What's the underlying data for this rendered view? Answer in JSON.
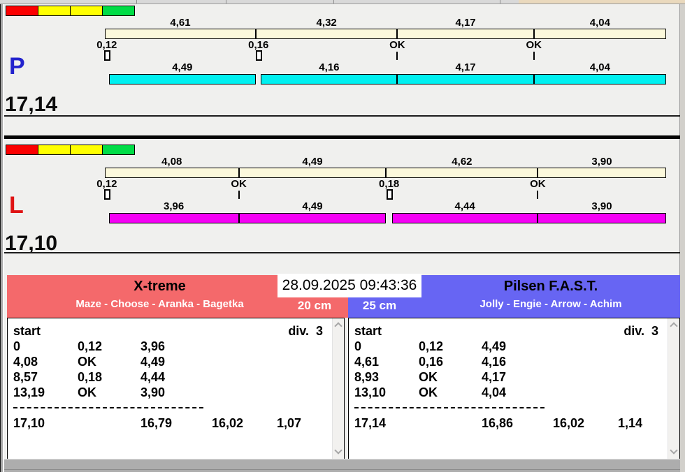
{
  "meta": {
    "datetime": "28.09.2025 09:43:36"
  },
  "lights": [
    "#fb0000",
    "#ffff00",
    "#ffff00",
    "#00dc46"
  ],
  "lanes": [
    {
      "letter": "P",
      "letter_color": "#2323cd",
      "total_label": "17,14",
      "total": 17.14,
      "bar_color": "#00f0f0",
      "segments": [
        {
          "label": "4,61",
          "t": 4.61
        },
        {
          "label": "4,32",
          "t": 4.32
        },
        {
          "label": "4,17",
          "t": 4.17
        },
        {
          "label": "4,04",
          "t": 4.04
        }
      ],
      "crossings": [
        {
          "label": "0,12",
          "gap": 0.12,
          "style": "box"
        },
        {
          "label": "0,16",
          "gap": 0.16,
          "style": "box"
        },
        {
          "label": "OK",
          "gap": 0,
          "style": "tick"
        },
        {
          "label": "OK",
          "gap": 0,
          "style": "tick"
        }
      ],
      "dog_segments": [
        {
          "label": "4,49",
          "t": 4.49
        },
        {
          "label": "4,16",
          "t": 4.16
        },
        {
          "label": "4,17",
          "t": 4.17
        },
        {
          "label": "4,04",
          "t": 4.04
        }
      ]
    },
    {
      "letter": "L",
      "letter_color": "#df1313",
      "total_label": "17,10",
      "total": 17.1,
      "bar_color": "#f500f5",
      "segments": [
        {
          "label": "4,08",
          "t": 4.08
        },
        {
          "label": "4,49",
          "t": 4.49
        },
        {
          "label": "4,62",
          "t": 4.62
        },
        {
          "label": "3,90",
          "t": 3.9
        }
      ],
      "crossings": [
        {
          "label": "0,12",
          "gap": 0.12,
          "style": "box"
        },
        {
          "label": "OK",
          "gap": 0,
          "style": "tick"
        },
        {
          "label": "0,18",
          "gap": 0.18,
          "style": "box"
        },
        {
          "label": "OK",
          "gap": 0,
          "style": "tick"
        }
      ],
      "dog_segments": [
        {
          "label": "3,96",
          "t": 3.96
        },
        {
          "label": "4,49",
          "t": 4.49
        },
        {
          "label": "4,44",
          "t": 4.44
        },
        {
          "label": "3,90",
          "t": 3.9
        }
      ]
    }
  ],
  "teams": [
    {
      "name": "X-treme",
      "members": "Maze - Choose - Aranka - Bagetka",
      "size": "20 cm",
      "color": "#f4696b",
      "start_label": "start",
      "div_label": "div.  3",
      "rows": [
        [
          "0",
          "0,12",
          "3,96"
        ],
        [
          "4,08",
          "OK",
          "4,49"
        ],
        [
          "8,57",
          "0,18",
          "4,44"
        ],
        [
          "13,19",
          "OK",
          "3,90"
        ]
      ],
      "totals": [
        "17,10",
        "16,79",
        "16,02",
        "1,07"
      ]
    },
    {
      "name": "Pilsen F.A.S.T.",
      "members": "Jolly - Engie - Arrow - Achim",
      "size": "25 cm",
      "color": "#6765f3",
      "start_label": "start",
      "div_label": "div.  3",
      "rows": [
        [
          "0",
          "0,12",
          "4,49"
        ],
        [
          "4,61",
          "0,16",
          "4,16"
        ],
        [
          "8,93",
          "OK",
          "4,17"
        ],
        [
          "13,10",
          "OK",
          "4,04"
        ]
      ],
      "totals": [
        "17,14",
        "16,86",
        "16,02",
        "1,14"
      ]
    }
  ]
}
